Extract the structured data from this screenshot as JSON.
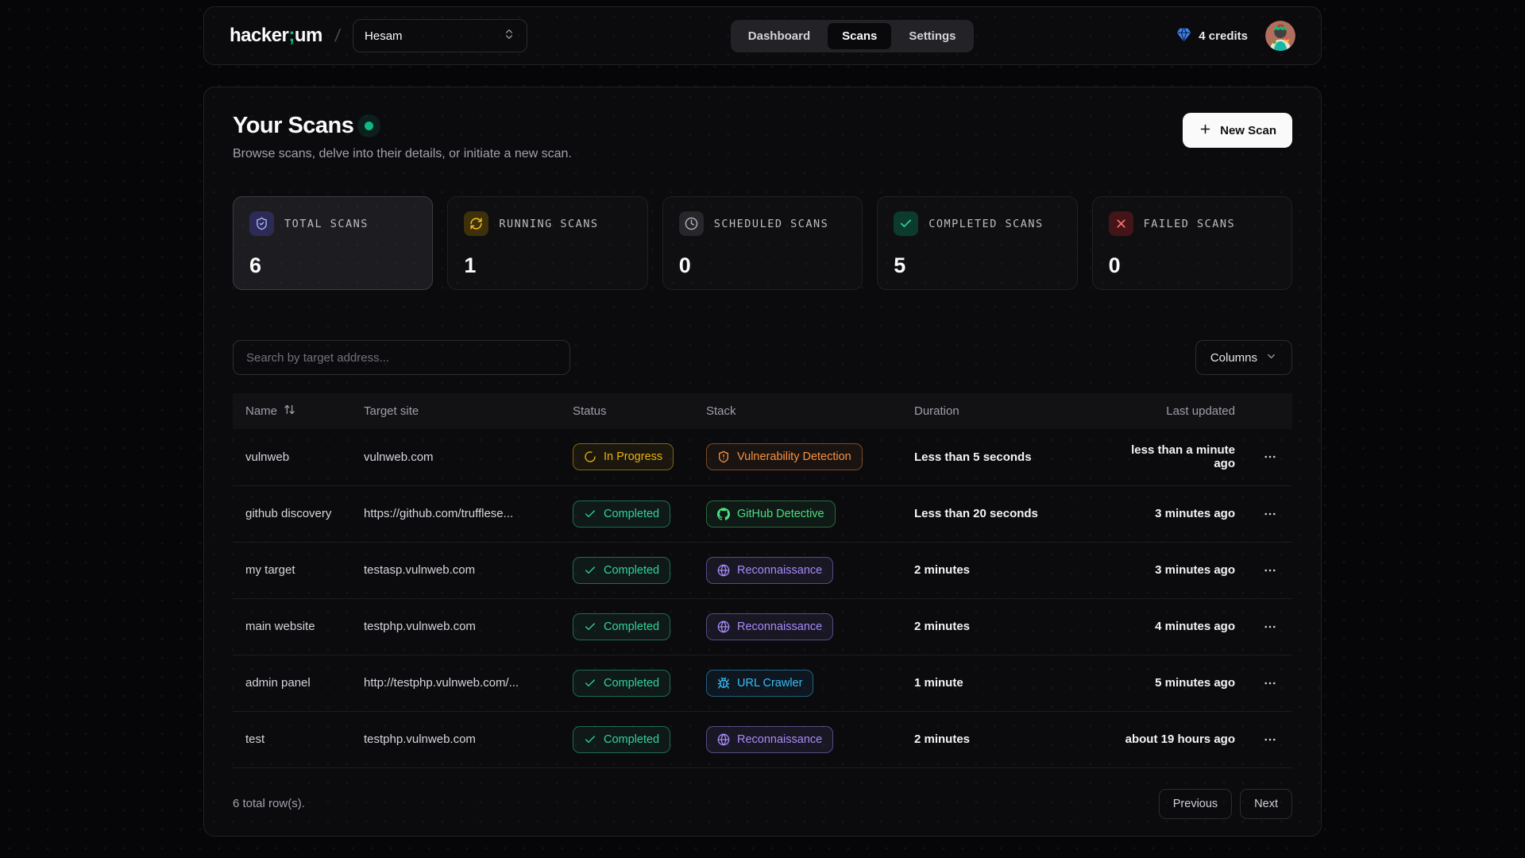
{
  "navbar": {
    "logo": {
      "part1": "hacker",
      "separator": ";",
      "part2": "um",
      "accent_color": "#10b981"
    },
    "breadcrumb_separator": "/",
    "workspace": {
      "value": "Hesam",
      "icon": "chevrons-up-down-icon"
    },
    "tabs": [
      {
        "label": "Dashboard",
        "active": false
      },
      {
        "label": "Scans",
        "active": true
      },
      {
        "label": "Settings",
        "active": false
      }
    ],
    "credits": {
      "label": "4 credits",
      "icon": "gem-icon",
      "color": "#3b82f6"
    }
  },
  "page": {
    "title": "Your Scans",
    "live_indicator_color": "#10b981",
    "subtitle": "Browse scans, delve into their details, or initiate a new scan.",
    "new_scan_button": "New Scan"
  },
  "stats": [
    {
      "label": "TOTAL SCANS",
      "value": "6",
      "icon": "shield-check-icon",
      "icon_color": "#a5b4fc",
      "highlighted": true
    },
    {
      "label": "RUNNING SCANS",
      "value": "1",
      "icon": "refresh-icon",
      "icon_color": "#fbbf24",
      "highlighted": false
    },
    {
      "label": "SCHEDULED SCANS",
      "value": "0",
      "icon": "clock-icon",
      "icon_color": "#b4b4bc",
      "highlighted": false
    },
    {
      "label": "COMPLETED SCANS",
      "value": "5",
      "icon": "check-icon",
      "icon_color": "#34d399",
      "highlighted": false
    },
    {
      "label": "FAILED SCANS",
      "value": "0",
      "icon": "x-icon",
      "icon_color": "#f87171",
      "highlighted": false
    }
  ],
  "toolbar": {
    "search_placeholder": "Search by target address...",
    "columns_button": "Columns",
    "columns_icon": "chevron-down-icon"
  },
  "table": {
    "headers": [
      "Name",
      "Target site",
      "Status",
      "Stack",
      "Duration",
      "Last updated"
    ],
    "sort_icon": "sort-arrows-icon",
    "rows": [
      {
        "name": "vulnweb",
        "target": "vulnweb.com",
        "status": {
          "label": "In Progress",
          "type": "in-progress",
          "icon": "spinner-icon"
        },
        "stack": {
          "label": "Vulnerability Detection",
          "type": "vulnerability-detection",
          "icon": "shield-alert-icon"
        },
        "duration": "Less than 5 seconds",
        "last_updated": "less than a minute ago"
      },
      {
        "name": "github discovery",
        "target": "https://github.com/trufflese...",
        "status": {
          "label": "Completed",
          "type": "completed",
          "icon": "check-icon"
        },
        "stack": {
          "label": "GitHub Detective",
          "type": "github-detective",
          "icon": "github-icon"
        },
        "duration": "Less than 20 seconds",
        "last_updated": "3 minutes ago"
      },
      {
        "name": "my target",
        "target": "testasp.vulnweb.com",
        "status": {
          "label": "Completed",
          "type": "completed",
          "icon": "check-icon"
        },
        "stack": {
          "label": "Reconnaissance",
          "type": "reconnaissance",
          "icon": "globe-icon"
        },
        "duration": "2 minutes",
        "last_updated": "3 minutes ago"
      },
      {
        "name": "main website",
        "target": "testphp.vulnweb.com",
        "status": {
          "label": "Completed",
          "type": "completed",
          "icon": "check-icon"
        },
        "stack": {
          "label": "Reconnaissance",
          "type": "reconnaissance",
          "icon": "globe-icon"
        },
        "duration": "2 minutes",
        "last_updated": "4 minutes ago"
      },
      {
        "name": "admin panel",
        "target": "http://testphp.vulnweb.com/...",
        "status": {
          "label": "Completed",
          "type": "completed",
          "icon": "check-icon"
        },
        "stack": {
          "label": "URL Crawler",
          "type": "url-crawler",
          "icon": "bug-icon"
        },
        "duration": "1 minute",
        "last_updated": "5 minutes ago"
      },
      {
        "name": "test",
        "target": "testphp.vulnweb.com",
        "status": {
          "label": "Completed",
          "type": "completed",
          "icon": "check-icon"
        },
        "stack": {
          "label": "Reconnaissance",
          "type": "reconnaissance",
          "icon": "globe-icon"
        },
        "duration": "2 minutes",
        "last_updated": "about 19 hours ago"
      }
    ]
  },
  "footer": {
    "total_text": "6 total row(s).",
    "previous_button": "Previous",
    "next_button": "Next"
  }
}
